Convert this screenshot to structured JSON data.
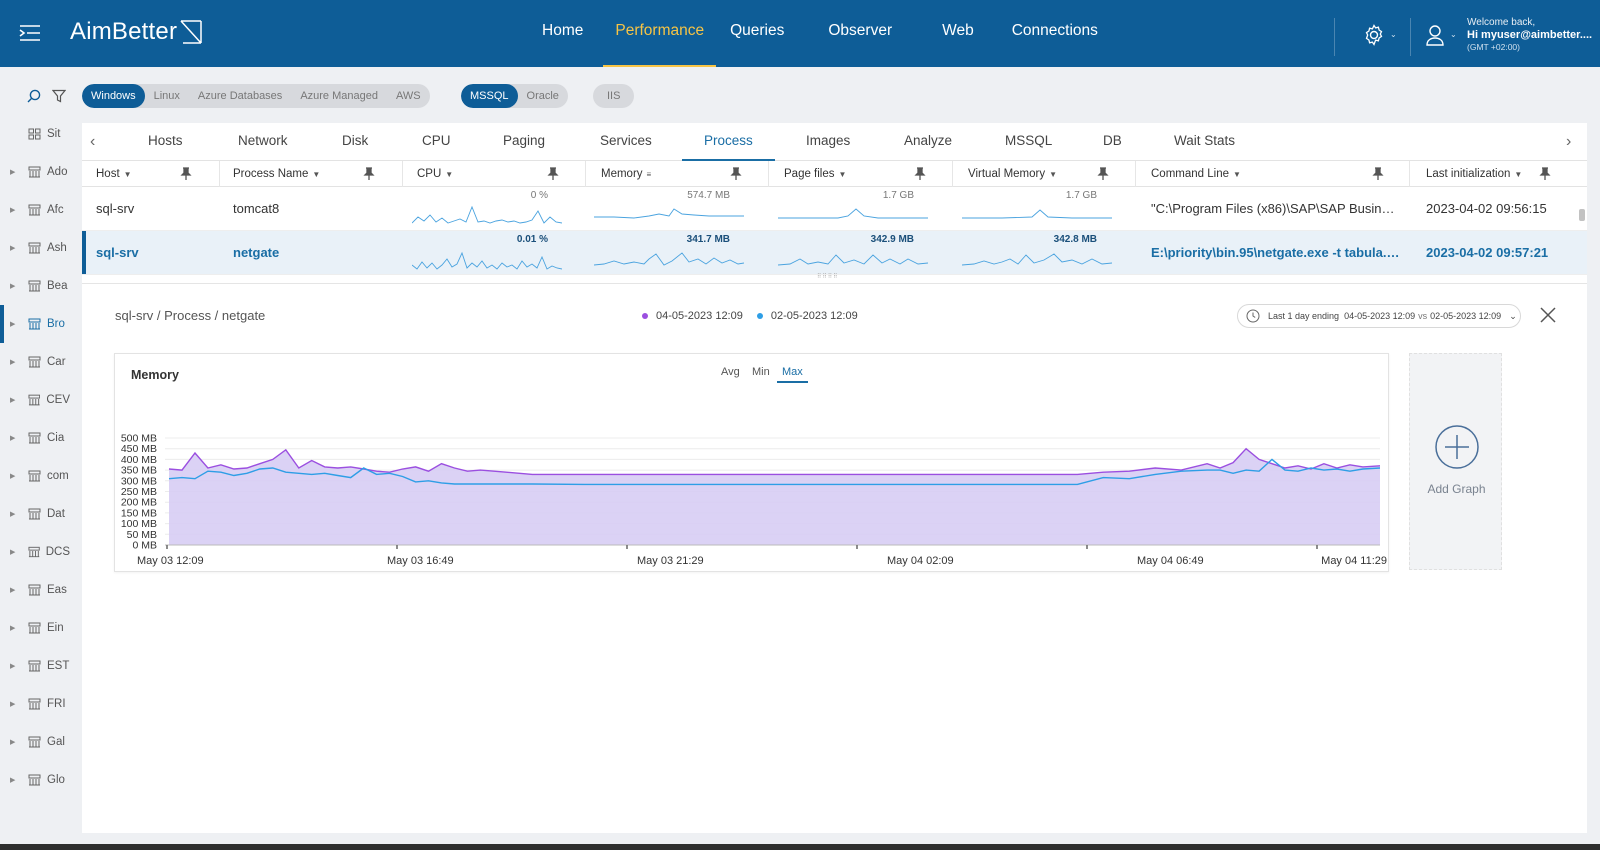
{
  "app": {
    "logo_text": "AimBetter",
    "nav": [
      "Home",
      "Performance",
      "Queries",
      "Observer",
      "Web",
      "Connections"
    ],
    "active_nav": "Performance",
    "welcome": "Welcome back,",
    "user": "Hi myuser@aimbetter....",
    "timezone": "(GMT +02:00)"
  },
  "sidebar": {
    "items": [
      "Sit",
      "Ado",
      "Afc",
      "Ash",
      "Bea",
      "Bro",
      "Car",
      "CEV",
      "Cia",
      "com",
      "Dat",
      "DCS",
      "Eas",
      "Ein",
      "EST",
      "FRI",
      "Gal",
      "Glo"
    ],
    "active_index": 5
  },
  "filters": {
    "os": [
      "Windows",
      "Linux",
      "Azure Databases",
      "Azure Managed",
      "AWS"
    ],
    "os_active": "Windows",
    "db": [
      "MSSQL",
      "Oracle"
    ],
    "db_active": "MSSQL",
    "web": [
      "IIS"
    ]
  },
  "tabs": [
    "Hosts",
    "Network",
    "Disk",
    "CPU",
    "Paging",
    "Services",
    "Process",
    "Images",
    "Analyze",
    "MSSQL",
    "DB",
    "Wait Stats"
  ],
  "active_tab": "Process",
  "columns": [
    "Host",
    "Process Name",
    "CPU",
    "Memory",
    "Page files",
    "Virtual Memory",
    "Command Line",
    "Last initialization"
  ],
  "rows": [
    {
      "host": "sql-srv",
      "process": "tomcat8",
      "cpu": "0 %",
      "memory": "574.7 MB",
      "page_files": "1.7 GB",
      "virtual_memory": "1.7 GB",
      "command": "\"C:\\Program Files (x86)\\SAP\\SAP Busines...",
      "last_init": "2023-04-02 09:56:15"
    },
    {
      "host": "sql-srv",
      "process": "netgate",
      "cpu": "0.01 %",
      "memory": "341.7 MB",
      "page_files": "342.9 MB",
      "virtual_memory": "342.8 MB",
      "command": "E:\\priority\\bin.95\\netgate.exe -t tabula.ini ...",
      "last_init": "2023-04-02 09:57:21"
    }
  ],
  "detail": {
    "breadcrumb": "sql-srv / Process / netgate",
    "legend": [
      {
        "label": "04-05-2023 12:09",
        "color": "#9b4fe0"
      },
      {
        "label": "02-05-2023 12:09",
        "color": "#2e9ee6"
      }
    ],
    "range_label": "Last 1 day ending",
    "range_a": "04-05-2023 12:09",
    "range_vs": "vs",
    "range_b": "02-05-2023 12:09",
    "add_graph": "Add Graph"
  },
  "chart_data": {
    "type": "area",
    "title": "Memory",
    "aggregations": [
      "Avg",
      "Min",
      "Max"
    ],
    "active_aggregation": "Max",
    "y_ticks": [
      "500 MB",
      "450 MB",
      "400 MB",
      "350 MB",
      "300 MB",
      "250 MB",
      "200 MB",
      "150 MB",
      "100 MB",
      "50 MB",
      "0 MB"
    ],
    "ylim": [
      0,
      500
    ],
    "x_ticks": [
      "May 03 12:09",
      "May 03 16:49",
      "May 03 21:29",
      "May 04 02:09",
      "May 04 06:49",
      "May 04 11:29"
    ],
    "xlim": [
      0,
      23.33
    ],
    "series": [
      {
        "name": "04-05-2023 12:09",
        "color": "#9b4fe0",
        "x": [
          0,
          0.25,
          0.5,
          0.75,
          1.0,
          1.25,
          1.5,
          1.75,
          2.0,
          2.25,
          2.5,
          2.75,
          3.0,
          3.25,
          3.5,
          3.75,
          4.0,
          4.25,
          4.5,
          4.75,
          5.0,
          5.25,
          5.5,
          5.75,
          6.0,
          6.5,
          7.0,
          8.0,
          10.0,
          12.0,
          14.0,
          16.0,
          17.5,
          18.0,
          18.5,
          19.0,
          19.5,
          20.0,
          20.25,
          20.5,
          20.75,
          21.0,
          21.25,
          21.5,
          21.75,
          22.0,
          22.25,
          22.5,
          22.75,
          23.0,
          23.33
        ],
        "values": [
          355,
          350,
          430,
          360,
          375,
          355,
          360,
          380,
          400,
          445,
          360,
          395,
          365,
          360,
          365,
          355,
          345,
          340,
          355,
          365,
          345,
          380,
          360,
          345,
          350,
          340,
          330,
          330,
          330,
          330,
          330,
          330,
          330,
          340,
          345,
          360,
          350,
          380,
          360,
          385,
          450,
          400,
          380,
          360,
          370,
          355,
          380,
          360,
          375,
          365,
          370
        ]
      },
      {
        "name": "02-05-2023 12:09",
        "color": "#2e9ee6",
        "x": [
          0,
          0.25,
          0.5,
          0.75,
          1.0,
          1.25,
          1.5,
          1.75,
          2.0,
          2.25,
          2.5,
          2.75,
          3.0,
          3.25,
          3.5,
          3.75,
          4.0,
          4.25,
          4.5,
          4.75,
          5.0,
          5.25,
          5.5,
          5.75,
          6.0,
          6.5,
          7.0,
          8.0,
          10.0,
          12.0,
          14.0,
          16.0,
          17.5,
          18.0,
          18.5,
          19.0,
          19.5,
          20.0,
          20.25,
          20.5,
          20.75,
          21.0,
          21.25,
          21.5,
          21.75,
          22.0,
          22.25,
          22.5,
          22.75,
          23.0,
          23.33
        ],
        "values": [
          310,
          315,
          310,
          345,
          340,
          325,
          335,
          355,
          360,
          340,
          335,
          330,
          335,
          325,
          315,
          360,
          330,
          335,
          320,
          295,
          300,
          290,
          285,
          285,
          285,
          285,
          285,
          283,
          283,
          283,
          283,
          283,
          283,
          315,
          310,
          330,
          345,
          350,
          350,
          335,
          350,
          345,
          400,
          350,
          345,
          360,
          350,
          355,
          345,
          355,
          360
        ]
      }
    ]
  }
}
